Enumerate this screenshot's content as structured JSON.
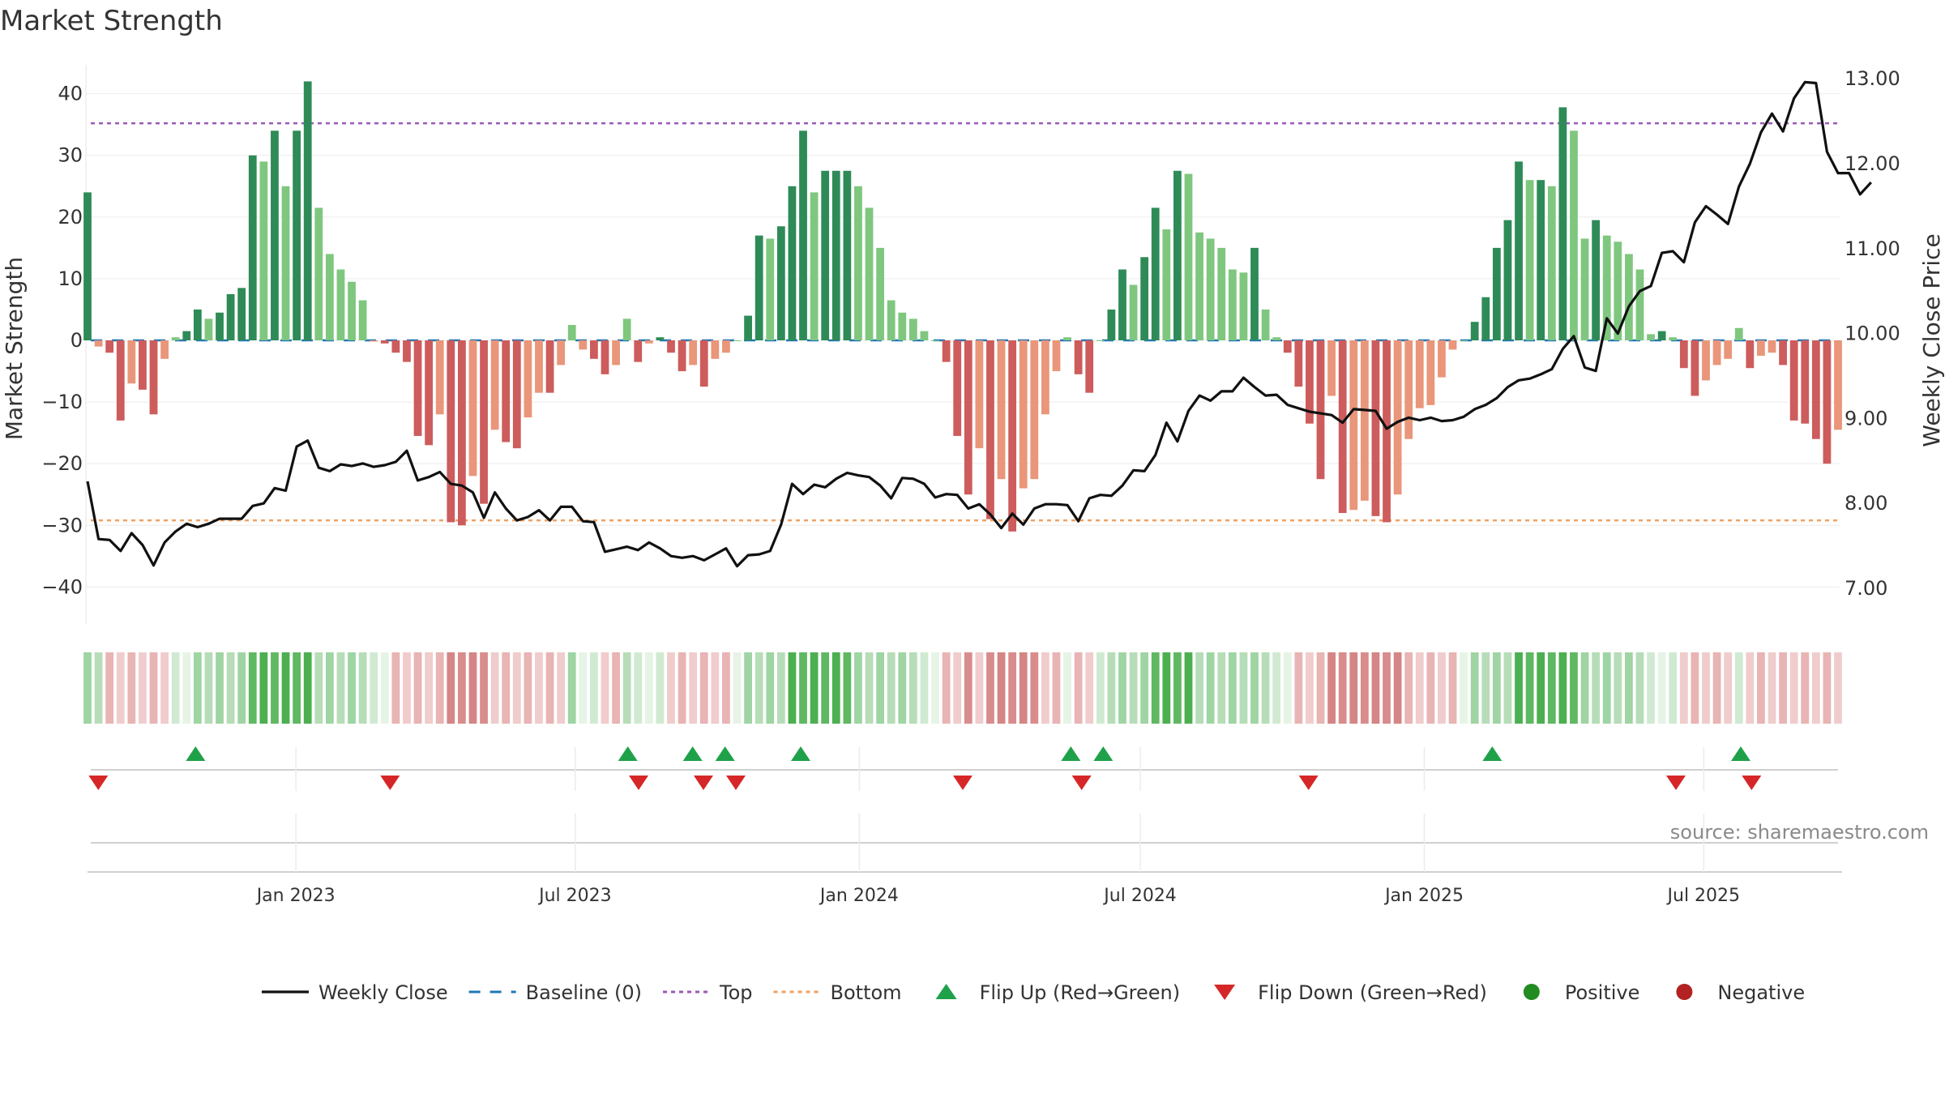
{
  "title": "Market Strength",
  "source": "source: sharemaestro.com",
  "colors": {
    "strong_green": "#2e8b57",
    "light_green": "#7fc77f",
    "strong_red": "#cd5c5c",
    "light_red": "#e9967a",
    "price_line": "#111111",
    "baseline": "#1f77b4",
    "top_line": "#9b59b6",
    "bottom_line": "#f0a060",
    "flip_up": "#1fa14a",
    "flip_down": "#d62728",
    "positive": "#228b22",
    "negative": "#b22222"
  },
  "chart_data": {
    "type": "bar",
    "title": "Market Strength",
    "ylabel": "Market Strength",
    "y2label": "Weekly Close Price",
    "ylim": [
      -46,
      46
    ],
    "y2lim": [
      6.58,
      13.26
    ],
    "yticks": [
      40,
      30,
      20,
      10,
      0,
      -10,
      -20,
      -30,
      -40
    ],
    "ytick_labels": [
      "40",
      "30",
      "20",
      "10",
      "0",
      "−10",
      "−20",
      "−30",
      "−40"
    ],
    "y2ticks": [
      13,
      12,
      11,
      10,
      9,
      8,
      7
    ],
    "y2tick_labels": [
      "13.00",
      "12.00",
      "11.00",
      "10.00",
      "9.00",
      "8.00",
      "7.00"
    ],
    "x_start": "2022-08-19",
    "x_end": "2025-09-26",
    "xticks": [
      "2023-01-01",
      "2023-07-01",
      "2024-01-01",
      "2024-07-01",
      "2025-01-01",
      "2025-07-01"
    ],
    "xtick_labels": [
      "Jan 2023",
      "Jul 2023",
      "Jan 2024",
      "Jul 2024",
      "Jan 2025",
      "Jul 2025"
    ],
    "top_level": 35.2,
    "bottom_level": -29.2,
    "strength": [
      24,
      -1,
      -2,
      -13,
      -7,
      -8,
      -12,
      -3,
      0.5,
      1.5,
      5,
      3.5,
      4.5,
      7.5,
      8.5,
      30,
      29,
      34,
      25,
      34,
      42,
      21.5,
      14,
      11.5,
      9.5,
      6.5,
      -0.2,
      -0.5,
      -2,
      -3.5,
      -15.5,
      -17,
      -12,
      -29.5,
      -30,
      -22,
      -26.5,
      -14.5,
      -16.5,
      -17.5,
      -12.5,
      -8.5,
      -8.5,
      -4,
      2.5,
      -1.5,
      -3,
      -5.5,
      -4,
      3.5,
      -3.5,
      -0.5,
      0.5,
      -2,
      -5,
      -4,
      -7.5,
      -3,
      -2,
      0,
      4,
      17,
      16.5,
      18.5,
      25,
      34,
      24,
      27.5,
      27.5,
      27.5,
      25,
      21.5,
      15,
      6.5,
      4.5,
      3.5,
      1.5,
      0,
      -3.5,
      -15.5,
      -25,
      -17.5,
      -29,
      -22.5,
      -31,
      -24,
      -22.5,
      -12,
      -5,
      0.5,
      -5.5,
      -8.5,
      0,
      5,
      11.5,
      9,
      13.5,
      21.5,
      18,
      27.5,
      27,
      17.5,
      16.5,
      15,
      11.5,
      11,
      15,
      5,
      0.5,
      -2,
      -7.5,
      -13.5,
      -22.5,
      -9,
      -28,
      -27.5,
      -26,
      -28.5,
      -29.5,
      -25,
      -16,
      -11,
      -10.5,
      -6,
      -1.5,
      0,
      3,
      7,
      15,
      19.5,
      29,
      26,
      26,
      25,
      37.8,
      34,
      16.5,
      19.5,
      17,
      16,
      14,
      11.5,
      1,
      1.5,
      0.5,
      -4.5,
      -9,
      -6.5,
      -4,
      -3,
      2,
      -4.5,
      -2.5,
      -2,
      -4,
      -13,
      -13.5,
      -16,
      -20,
      -14.5
    ],
    "price": [
      8.26,
      7.58,
      7.57,
      7.44,
      7.65,
      7.51,
      7.27,
      7.54,
      7.67,
      7.76,
      7.72,
      7.76,
      7.82,
      7.82,
      7.82,
      7.97,
      8.0,
      8.18,
      8.15,
      8.67,
      8.74,
      8.42,
      8.38,
      8.46,
      8.44,
      8.47,
      8.43,
      8.45,
      8.49,
      8.62,
      8.27,
      8.31,
      8.37,
      8.23,
      8.21,
      8.13,
      7.83,
      8.13,
      7.94,
      7.8,
      7.84,
      7.92,
      7.8,
      7.96,
      7.96,
      7.79,
      7.78,
      7.43,
      7.46,
      7.49,
      7.45,
      7.54,
      7.47,
      7.38,
      7.36,
      7.38,
      7.33,
      7.4,
      7.47,
      7.26,
      7.39,
      7.4,
      7.44,
      7.75,
      8.23,
      8.11,
      8.22,
      8.19,
      8.29,
      8.36,
      8.33,
      8.31,
      8.21,
      8.06,
      8.3,
      8.29,
      8.23,
      8.07,
      8.11,
      8.1,
      7.94,
      7.99,
      7.87,
      7.71,
      7.88,
      7.75,
      7.94,
      7.99,
      7.99,
      7.98,
      7.79,
      8.06,
      8.1,
      8.09,
      8.21,
      8.39,
      8.38,
      8.57,
      8.95,
      8.73,
      9.09,
      9.27,
      9.21,
      9.32,
      9.32,
      9.48,
      9.37,
      9.27,
      9.28,
      9.16,
      9.12,
      9.08,
      9.06,
      9.04,
      8.95,
      9.11,
      9.1,
      9.09,
      8.88,
      8.96,
      9.01,
      8.98,
      9.01,
      8.97,
      8.98,
      9.02,
      9.11,
      9.16,
      9.24,
      9.37,
      9.45,
      9.47,
      9.52,
      9.58,
      9.82,
      9.97,
      9.6,
      9.56,
      10.18,
      10.0,
      10.32,
      10.5,
      10.56,
      10.95,
      10.97,
      10.84,
      11.31,
      11.5,
      11.4,
      11.29,
      11.73,
      12.0,
      12.37,
      12.59,
      12.38,
      12.77,
      12.96,
      12.95,
      12.14,
      11.89,
      11.89,
      11.64,
      11.78
    ],
    "state_strip": [
      1,
      1,
      -1,
      -1,
      -1,
      -1,
      -1,
      -1,
      0,
      0,
      1,
      1,
      1,
      1,
      1,
      2,
      2,
      2,
      2,
      2,
      2,
      1,
      1,
      1,
      1,
      1,
      0,
      0,
      -1,
      -1,
      -1,
      -1,
      -1,
      -2,
      -2,
      -2,
      -2,
      -1,
      -1,
      -1,
      -1,
      -1,
      -1,
      -1,
      1,
      0,
      0,
      -1,
      -1,
      1,
      0,
      0,
      0,
      -1,
      -1,
      -1,
      -1,
      -1,
      -1,
      0,
      1,
      1,
      1,
      1,
      2,
      2,
      2,
      2,
      2,
      2,
      1,
      1,
      1,
      1,
      1,
      1,
      0,
      0,
      -1,
      -1,
      -2,
      -1,
      -2,
      -2,
      -2,
      -2,
      -2,
      -1,
      -1,
      0,
      -1,
      -1,
      0,
      1,
      1,
      1,
      1,
      2,
      2,
      2,
      2,
      1,
      1,
      1,
      1,
      1,
      1,
      1,
      0,
      0,
      -1,
      -1,
      -1,
      -2,
      -2,
      -2,
      -2,
      -2,
      -2,
      -2,
      -1,
      -1,
      -1,
      -1,
      -1,
      0,
      1,
      1,
      1,
      1,
      2,
      2,
      2,
      2,
      2,
      2,
      1,
      1,
      1,
      1,
      1,
      1,
      0,
      0,
      0,
      -1,
      -1,
      -1,
      -1,
      -1,
      0,
      -1,
      -1,
      -1,
      -1,
      -1,
      -1,
      -1,
      -1,
      -1
    ],
    "flip_up": [
      "2022-10-28",
      "2023-08-04",
      "2023-09-15",
      "2023-10-06",
      "2023-11-24",
      "2024-05-17",
      "2024-06-07",
      "2025-02-14",
      "2025-07-25"
    ],
    "flip_down": [
      "2022-08-26",
      "2023-03-03",
      "2023-08-11",
      "2023-09-22",
      "2023-10-13",
      "2024-03-08",
      "2024-05-24",
      "2024-10-18",
      "2025-06-13",
      "2025-08-01"
    ],
    "legend": [
      {
        "label": "Weekly Close",
        "kind": "line"
      },
      {
        "label": "Baseline (0)",
        "kind": "dash"
      },
      {
        "label": "Top",
        "kind": "dot-purple"
      },
      {
        "label": "Bottom",
        "kind": "dot-orange"
      },
      {
        "label": "Flip Up (Red→Green)",
        "kind": "tri-up"
      },
      {
        "label": "Flip Down (Green→Red)",
        "kind": "tri-down"
      },
      {
        "label": "Positive",
        "kind": "dot-green"
      },
      {
        "label": "Negative",
        "kind": "dot-red"
      }
    ]
  }
}
